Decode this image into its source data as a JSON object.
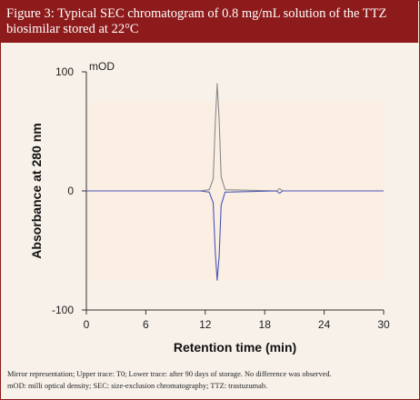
{
  "figure": {
    "caption_line1": "Figure 3: Typical SEC chromatogram of 0.8 mg/mL solution of the TTZ",
    "caption_line2": "biosimilar stored at 22°C",
    "footnote_line1": "Mirror representation; Upper trace: T0; Lower trace: after 90 days of storage. No difference was observed.",
    "footnote_line2": "mOD: milli optical density; SEC: size-exclusion chromatography; TTZ: trastuzumab."
  },
  "colors": {
    "caption_bg": "#8e1b1b",
    "plot_bg": "#fbeee2",
    "upper_trace": "#8a8a8a",
    "lower_trace": "#4a55b8"
  },
  "chart_data": {
    "type": "line",
    "xlabel": "Retention time (min)",
    "ylabel": "Absorbance at 280 nm",
    "y_unit_label": "mOD",
    "xlim": [
      0,
      30
    ],
    "ylim": [
      -100,
      100
    ],
    "x_ticks": [
      0,
      6,
      12,
      18,
      24,
      30
    ],
    "y_ticks": [
      100,
      0,
      -100
    ],
    "shaded_region": {
      "x": [
        0,
        30
      ],
      "y": [
        -75,
        75
      ]
    },
    "grid": false,
    "mirror": true,
    "series": [
      {
        "name": "Upper trace: T0",
        "x": [
          0.0,
          11.5,
          12.4,
          12.8,
          13.0,
          13.2,
          13.4,
          13.6,
          14.0,
          19.2,
          19.5,
          19.8,
          20.1,
          30.0
        ],
        "y": [
          0,
          0,
          1,
          10,
          55,
          90,
          60,
          12,
          1,
          0,
          2,
          0,
          0,
          0
        ]
      },
      {
        "name": "Lower trace: after 90 days of storage",
        "x": [
          0.0,
          11.5,
          12.4,
          12.8,
          13.0,
          13.2,
          13.4,
          13.6,
          14.0,
          19.2,
          19.5,
          19.8,
          20.1,
          30.0
        ],
        "y": [
          0,
          0,
          -1,
          -10,
          -50,
          -75,
          -55,
          -12,
          -1,
          0,
          -2,
          0,
          0,
          0
        ]
      }
    ]
  }
}
